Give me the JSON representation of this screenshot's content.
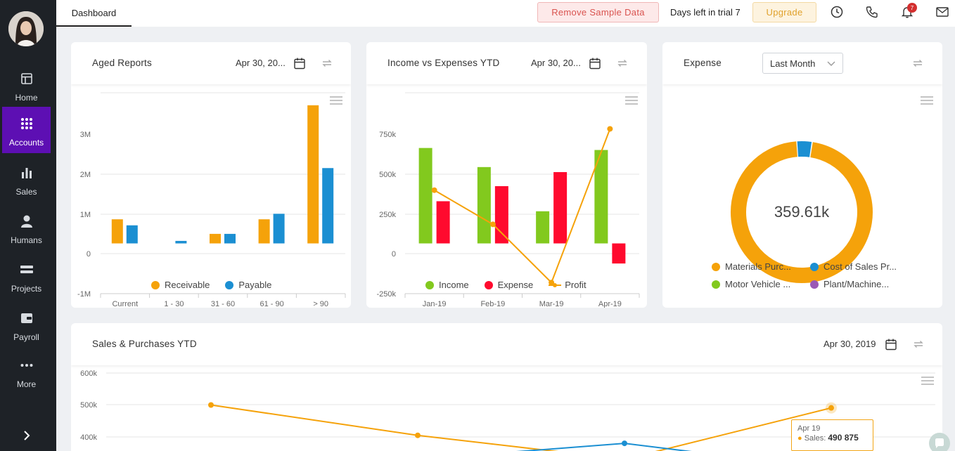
{
  "sidebar": {
    "items": [
      {
        "label": "Home",
        "icon": "layout-icon"
      },
      {
        "label": "Accounts",
        "icon": "grid-dots-icon"
      },
      {
        "label": "Sales",
        "icon": "bar-chart-icon"
      },
      {
        "label": "Humans",
        "icon": "person-icon"
      },
      {
        "label": "Projects",
        "icon": "projects-icon"
      },
      {
        "label": "Payroll",
        "icon": "wallet-icon"
      },
      {
        "label": "More",
        "icon": "ellipsis-icon"
      }
    ],
    "active": "Accounts"
  },
  "topbar": {
    "tab": "Dashboard",
    "remove_label": "Remove Sample Data",
    "trial_text": "Days left in trial 7",
    "upgrade_label": "Upgrade",
    "notification_count": "7"
  },
  "cards": {
    "aged": {
      "title": "Aged Reports",
      "date": "Apr 30, 20..."
    },
    "income": {
      "title": "Income vs Expenses YTD",
      "date": "Apr 30, 20..."
    },
    "expense": {
      "title": "Expense",
      "select_value": "Last Month",
      "center_value": "359.61k"
    },
    "sales": {
      "title": "Sales & Purchases YTD",
      "date": "Apr 30, 2019"
    }
  },
  "tooltip": {
    "label": "Apr 19",
    "series": "Sales:",
    "value": "490 875"
  },
  "colors": {
    "orange": "#f5a20a",
    "blue": "#1b8fd2",
    "green": "#82c91e",
    "red": "#ff0a2e",
    "purple": "#9b59b6",
    "accent": "#5d0fb3"
  },
  "chart_data": [
    {
      "type": "bar",
      "title": "Aged Reports",
      "categories": [
        "Current",
        "1 - 30",
        "31 - 60",
        "61 - 90",
        "> 90"
      ],
      "series": [
        {
          "name": "Receivable",
          "values": [
            480000,
            0,
            190000,
            480000,
            2750000
          ]
        },
        {
          "name": "Payable",
          "values": [
            360000,
            50000,
            190000,
            590000,
            1500000
          ]
        }
      ],
      "yticks": [
        "3M",
        "2M",
        "1M",
        "0",
        "-1M"
      ],
      "ylim": [
        -1000000,
        3000000
      ]
    },
    {
      "type": "bar",
      "title": "Income vs Expenses YTD",
      "categories": [
        "Jan-19",
        "Feb-19",
        "Mar-19",
        "Apr-19"
      ],
      "series": [
        {
          "name": "Income",
          "values": [
            475000,
            380000,
            160000,
            465000
          ]
        },
        {
          "name": "Expense",
          "values": [
            210000,
            285000,
            355000,
            -100000
          ]
        },
        {
          "name": "Profit",
          "values": [
            265000,
            95000,
            -195000,
            570000
          ]
        }
      ],
      "yticks": [
        "750k",
        "500k",
        "250k",
        "0",
        "-250k"
      ],
      "ylim": [
        -250000,
        750000
      ]
    },
    {
      "type": "pie",
      "title": "Expense",
      "labels": [
        "Materials Purc...",
        "Cost of Sales Pr...",
        "Motor Vehicle ...",
        "Plant/Machine..."
      ],
      "values": [
        96.5,
        3.5,
        0,
        0
      ]
    },
    {
      "type": "line",
      "title": "Sales & Purchases YTD",
      "x": [
        "Jan-19",
        "Feb-19",
        "Mar-19",
        "Apr-19"
      ],
      "series": [
        {
          "name": "Sales",
          "values": [
            500000,
            405000,
            330000,
            490875
          ]
        },
        {
          "name": "Purchases",
          "values": [
            300000,
            330000,
            380000,
            300000
          ]
        }
      ],
      "yticks": [
        "600k",
        "500k",
        "400k"
      ]
    }
  ]
}
